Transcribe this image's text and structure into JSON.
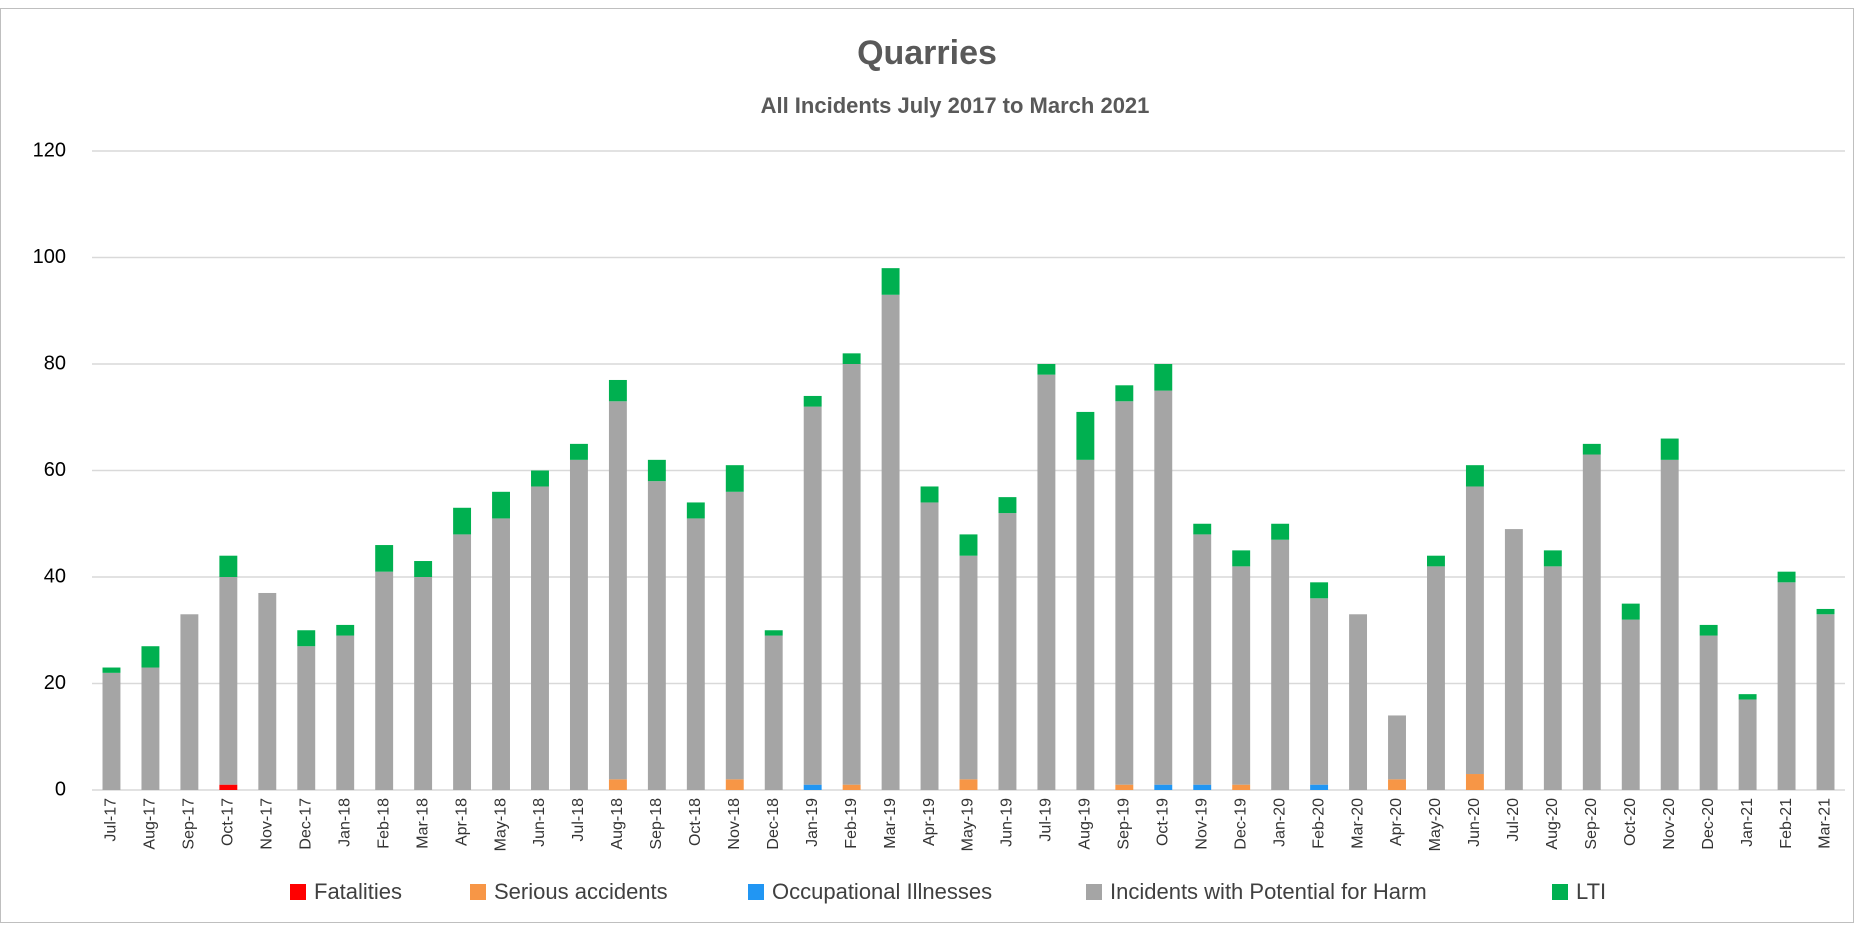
{
  "chart_data": {
    "type": "bar",
    "stacked": true,
    "title": "Quarries",
    "subtitle": "All Incidents July 2017 to March 2021",
    "categories": [
      "Jul-17",
      "Aug-17",
      "Sep-17",
      "Oct-17",
      "Nov-17",
      "Dec-17",
      "Jan-18",
      "Feb-18",
      "Mar-18",
      "Apr-18",
      "May-18",
      "Jun-18",
      "Jul-18",
      "Aug-18",
      "Sep-18",
      "Oct-18",
      "Nov-18",
      "Dec-18",
      "Jan-19",
      "Feb-19",
      "Mar-19",
      "Apr-19",
      "May-19",
      "Jun-19",
      "Jul-19",
      "Aug-19",
      "Sep-19",
      "Oct-19",
      "Nov-19",
      "Dec-19",
      "Jan-20",
      "Feb-20",
      "Mar-20",
      "Apr-20",
      "May-20",
      "Jun-20",
      "Jul-20",
      "Aug-20",
      "Sep-20",
      "Oct-20",
      "Nov-20",
      "Dec-20",
      "Jan-21",
      "Feb-21",
      "Mar-21"
    ],
    "series": [
      {
        "name": "Fatalities",
        "color": "#ff0000",
        "values": [
          0,
          0,
          0,
          1,
          0,
          0,
          0,
          0,
          0,
          0,
          0,
          0,
          0,
          0,
          0,
          0,
          0,
          0,
          0,
          0,
          0,
          0,
          0,
          0,
          0,
          0,
          0,
          0,
          0,
          0,
          0,
          0,
          0,
          0,
          0,
          0,
          0,
          0,
          0,
          0,
          0,
          0,
          0,
          0,
          0
        ]
      },
      {
        "name": "Serious accidents",
        "color": "#f79646",
        "values": [
          0,
          0,
          0,
          0,
          0,
          0,
          0,
          0,
          0,
          0,
          0,
          0,
          0,
          2,
          0,
          0,
          2,
          0,
          0,
          1,
          0,
          0,
          2,
          0,
          0,
          0,
          1,
          0,
          0,
          1,
          0,
          0,
          0,
          2,
          0,
          3,
          0,
          0,
          0,
          0,
          0,
          0,
          0,
          0,
          0
        ]
      },
      {
        "name": "Occupational Illnesses",
        "color": "#2196f3",
        "values": [
          0,
          0,
          0,
          0,
          0,
          0,
          0,
          0,
          0,
          0,
          0,
          0,
          0,
          0,
          0,
          0,
          0,
          0,
          1,
          0,
          0,
          0,
          0,
          0,
          0,
          0,
          0,
          1,
          1,
          0,
          0,
          1,
          0,
          0,
          0,
          0,
          0,
          0,
          0,
          0,
          0,
          0,
          0,
          0,
          0
        ]
      },
      {
        "name": "Incidents with Potential for Harm",
        "color": "#a5a5a5",
        "values": [
          22,
          23,
          33,
          39,
          37,
          27,
          29,
          41,
          40,
          48,
          51,
          57,
          62,
          71,
          58,
          51,
          54,
          29,
          71,
          79,
          93,
          54,
          42,
          52,
          78,
          62,
          72,
          74,
          47,
          41,
          47,
          35,
          33,
          12,
          42,
          54,
          49,
          42,
          63,
          32,
          62,
          29,
          17,
          39,
          33
        ]
      },
      {
        "name": "LTI",
        "color": "#00b050",
        "values": [
          1,
          4,
          0,
          4,
          0,
          3,
          2,
          5,
          3,
          5,
          5,
          3,
          3,
          4,
          4,
          3,
          5,
          1,
          2,
          2,
          5,
          3,
          4,
          3,
          2,
          9,
          3,
          5,
          2,
          3,
          3,
          3,
          0,
          0,
          2,
          4,
          0,
          3,
          2,
          3,
          4,
          2,
          1,
          2,
          1
        ]
      }
    ],
    "ylim": [
      0,
      120
    ],
    "yticks": [
      0,
      20,
      40,
      60,
      80,
      100,
      120
    ],
    "grid": true,
    "legend": "bottom"
  }
}
